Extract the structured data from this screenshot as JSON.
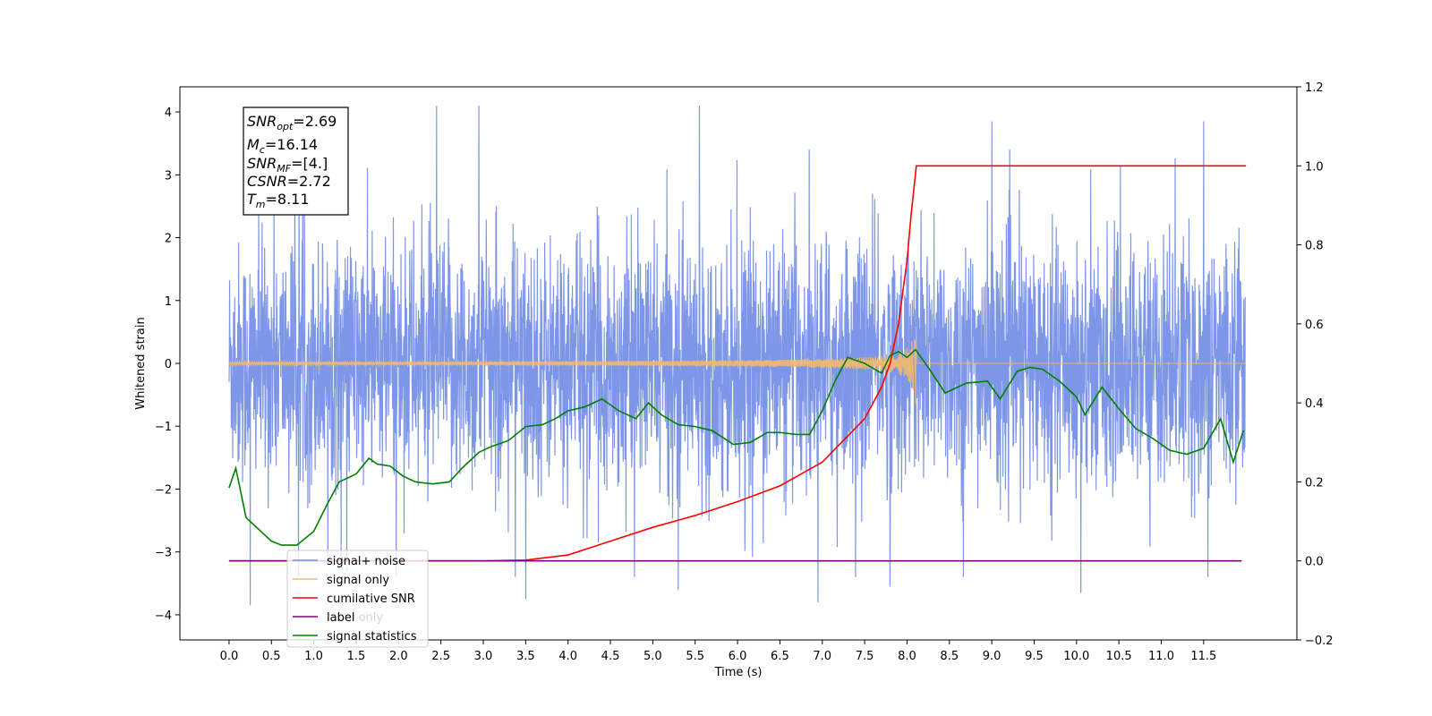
{
  "chart_data": {
    "type": "line",
    "xlabel": "Time (s)",
    "ylabel_left": "Whitened strain",
    "ylabel_right": "",
    "xlim": [
      -0.58,
      12.6
    ],
    "ylim_left": [
      -4.4,
      4.4
    ],
    "ylim_right": [
      -0.2,
      1.2
    ],
    "x_ticks": [
      0.0,
      0.5,
      1.0,
      1.5,
      2.0,
      2.5,
      3.0,
      3.5,
      4.0,
      4.5,
      5.0,
      5.5,
      6.0,
      6.5,
      7.0,
      7.5,
      8.0,
      8.5,
      9.0,
      9.5,
      10.0,
      10.5,
      11.0,
      11.5
    ],
    "x_tick_labels": [
      "0.0",
      "0.5",
      "1.0",
      "1.5",
      "2.0",
      "2.5",
      "3.0",
      "3.5",
      "4.0",
      "4.5",
      "5.0",
      "5.5",
      "6.0",
      "6.5",
      "7.0",
      "7.5",
      "8.0",
      "8.5",
      "9.0",
      "9.5",
      "10.0",
      "10.5",
      "11.0",
      "11.5"
    ],
    "y_left_ticks": [
      -4,
      -3,
      -2,
      -1,
      0,
      1,
      2,
      3,
      4
    ],
    "y_left_tick_labels": [
      "−4",
      "−3",
      "−2",
      "−1",
      "0",
      "1",
      "2",
      "3",
      "4"
    ],
    "y_right_ticks": [
      -0.2,
      0.0,
      0.2,
      0.4,
      0.6,
      0.8,
      1.0,
      1.2
    ],
    "y_right_tick_labels": [
      "−0.2",
      "0.0",
      "0.2",
      "0.4",
      "0.6",
      "0.8",
      "1.0",
      "1.2"
    ],
    "grid": false,
    "annotation": {
      "lines": [
        {
          "name": "SNR",
          "sub": "opt",
          "value": "=2.69"
        },
        {
          "name": "M",
          "sub": "c",
          "value": "=16.14"
        },
        {
          "name": "SNR",
          "sub": "MF",
          "value": "=[4.]"
        },
        {
          "name": "CSNR",
          "sub": "",
          "value": "=2.72"
        },
        {
          "name": "T",
          "sub": "m",
          "value": "=8.11"
        }
      ]
    },
    "legend": {
      "placement": "lower-left",
      "entries": [
        {
          "label": "signal+ noise",
          "color": "#7690e6"
        },
        {
          "label": "signal only",
          "color": "#f5b96a"
        },
        {
          "label": "cumilative SNR",
          "color": "#ff0000"
        },
        {
          "label": "label",
          "color": "#800080"
        },
        {
          "label": "signal statistics",
          "color": "#008000"
        }
      ],
      "hidden_label": "label only"
    },
    "series": [
      {
        "name": "signal+ noise",
        "axis": "left",
        "color": "#7690e6",
        "x_range": [
          0.0,
          11.99
        ],
        "description": "dense noise, amplitude ~±2.5, peaks to ±4.1",
        "peaks": [
          {
            "x": 2.45,
            "y": 4.1
          },
          {
            "x": 2.95,
            "y": 4.1
          },
          {
            "x": 5.55,
            "y": 4.1
          },
          {
            "x": 9.0,
            "y": 3.85
          },
          {
            "x": 11.5,
            "y": 3.85
          },
          {
            "x": 0.25,
            "y": -3.85
          },
          {
            "x": 3.5,
            "y": -3.75
          },
          {
            "x": 6.95,
            "y": -3.8
          },
          {
            "x": 10.05,
            "y": -3.65
          },
          {
            "x": 5.3,
            "y": -3.6
          },
          {
            "x": 7.8,
            "y": -3.55
          }
        ]
      },
      {
        "name": "signal only",
        "axis": "left",
        "color": "#f5b96a",
        "x_range": [
          0.0,
          11.99
        ],
        "description": "chirp growing toward merger at ~8.11 s, peak amplitude ~0.65, zero after",
        "merger_time": 8.11,
        "peak_amplitude": 0.65
      },
      {
        "name": "cumilative SNR",
        "axis": "right",
        "color": "#ff0000",
        "x": [
          0.0,
          2.0,
          3.0,
          3.5,
          4.0,
          4.5,
          5.0,
          5.5,
          6.0,
          6.5,
          7.0,
          7.5,
          7.7,
          7.8,
          7.9,
          8.0,
          8.05,
          8.11,
          8.2,
          12.0
        ],
        "y": [
          0.0,
          0.0,
          0.0,
          0.002,
          0.015,
          0.05,
          0.085,
          0.115,
          0.15,
          0.19,
          0.25,
          0.36,
          0.44,
          0.5,
          0.6,
          0.76,
          0.88,
          1.0,
          1.0,
          1.0
        ]
      },
      {
        "name": "label",
        "axis": "right",
        "color": "#800080",
        "x": [
          0.0,
          11.95
        ],
        "y": [
          0.0,
          0.0
        ]
      },
      {
        "name": "signal statistics",
        "axis": "right",
        "color": "#008000",
        "x": [
          0.0,
          0.08,
          0.2,
          0.35,
          0.5,
          0.62,
          0.8,
          1.0,
          1.15,
          1.3,
          1.5,
          1.65,
          1.75,
          1.9,
          2.05,
          2.2,
          2.4,
          2.6,
          2.75,
          2.95,
          3.1,
          3.3,
          3.5,
          3.7,
          3.85,
          4.0,
          4.2,
          4.4,
          4.6,
          4.8,
          4.95,
          5.1,
          5.3,
          5.5,
          5.7,
          5.95,
          6.15,
          6.35,
          6.5,
          6.7,
          6.85,
          7.0,
          7.15,
          7.3,
          7.5,
          7.7,
          7.8,
          7.9,
          8.0,
          8.1,
          8.25,
          8.45,
          8.7,
          8.95,
          9.1,
          9.3,
          9.45,
          9.6,
          9.8,
          10.0,
          10.1,
          10.3,
          10.5,
          10.7,
          10.9,
          11.1,
          11.3,
          11.5,
          11.7,
          11.85,
          11.97
        ],
        "y": [
          0.185,
          0.235,
          0.11,
          0.08,
          0.05,
          0.04,
          0.04,
          0.075,
          0.14,
          0.2,
          0.22,
          0.26,
          0.245,
          0.24,
          0.215,
          0.2,
          0.195,
          0.2,
          0.235,
          0.275,
          0.29,
          0.305,
          0.34,
          0.345,
          0.36,
          0.38,
          0.39,
          0.41,
          0.38,
          0.36,
          0.4,
          0.37,
          0.345,
          0.34,
          0.33,
          0.295,
          0.3,
          0.325,
          0.325,
          0.32,
          0.32,
          0.38,
          0.455,
          0.515,
          0.5,
          0.475,
          0.52,
          0.53,
          0.515,
          0.535,
          0.49,
          0.425,
          0.45,
          0.455,
          0.41,
          0.48,
          0.49,
          0.485,
          0.455,
          0.415,
          0.37,
          0.44,
          0.385,
          0.335,
          0.31,
          0.28,
          0.27,
          0.285,
          0.36,
          0.25,
          0.33
        ]
      }
    ]
  }
}
